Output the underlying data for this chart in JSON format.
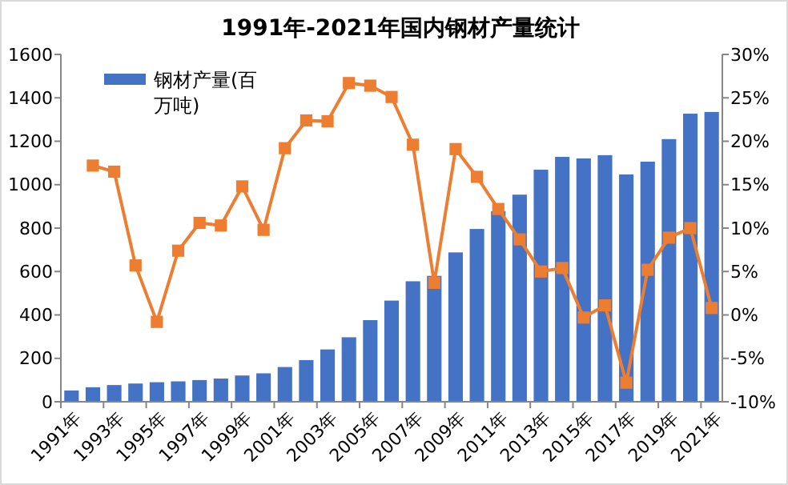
{
  "chart_data": {
    "type": "bar",
    "title": "1991年-2021年国内钢材产量统计",
    "categories": [
      "1991年",
      null,
      "1993年",
      null,
      "1995年",
      null,
      "1997年",
      null,
      "1999年",
      null,
      "2001年",
      null,
      "2003年",
      null,
      "2005年",
      null,
      "2007年",
      null,
      "2009年",
      null,
      "2011年",
      null,
      "2013年",
      null,
      "2015年",
      null,
      "2017年",
      null,
      "2019年",
      null,
      "2021年"
    ],
    "series": [
      {
        "name": "钢材产量(百万吨)",
        "color": "#4472c4",
        "values": [
          52,
          67,
          77,
          84,
          90,
          94,
          100,
          107,
          121,
          131,
          160,
          192,
          241,
          297,
          376,
          466,
          555,
          580,
          688,
          796,
          878,
          954,
          1069,
          1128,
          1121,
          1136,
          1047,
          1106,
          1210,
          1327,
          1335
        ]
      },
      {
        "type": "line",
        "axis": "y2",
        "color": "#ed7d31",
        "marker": "square",
        "values": [
          null,
          17.2,
          16.5,
          5.7,
          -0.8,
          7.4,
          10.6,
          10.3,
          14.8,
          9.8,
          19.2,
          22.4,
          22.3,
          26.7,
          26.4,
          25.1,
          19.6,
          3.7,
          19.1,
          15.9,
          12.2,
          8.7,
          5.0,
          5.4,
          -0.3,
          1.1,
          -7.8,
          5.2,
          8.9,
          10.0,
          0.8
        ]
      }
    ],
    "ylim": [
      0,
      1600
    ],
    "yticks": [
      0,
      200,
      400,
      600,
      800,
      1000,
      1200,
      1400,
      1600
    ],
    "y2lim": [
      -10,
      30
    ],
    "y2ticks": [
      {
        "value": -10,
        "label": "-10%"
      },
      {
        "value": -5,
        "label": "-5%"
      },
      {
        "value": 0,
        "label": "0%"
      },
      {
        "value": 5,
        "label": "5%"
      },
      {
        "value": 10,
        "label": "10%"
      },
      {
        "value": 15,
        "label": "15%"
      },
      {
        "value": 20,
        "label": "20%"
      },
      {
        "value": 25,
        "label": "25%"
      },
      {
        "value": 30,
        "label": "30%"
      }
    ],
    "grid": false,
    "legend": "top left"
  }
}
